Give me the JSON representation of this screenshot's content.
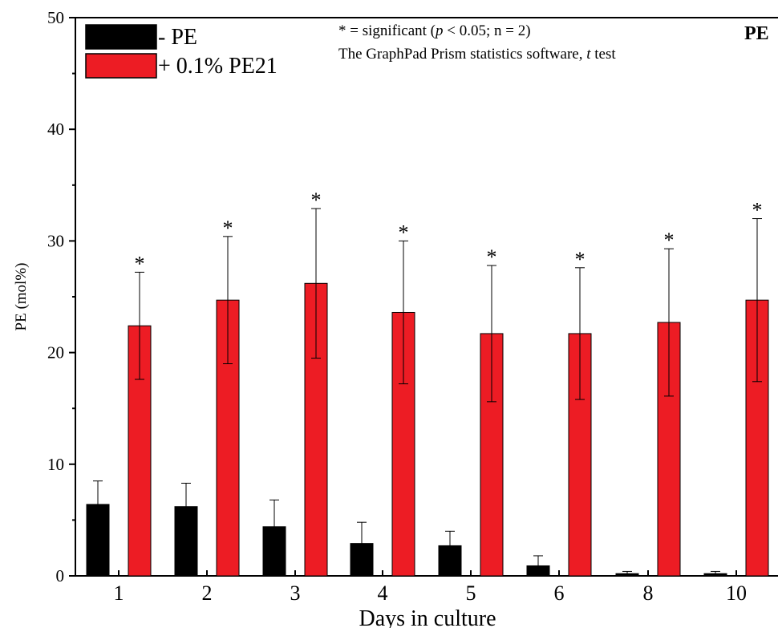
{
  "chart_data": {
    "type": "bar",
    "categories": [
      "1",
      "2",
      "3",
      "4",
      "5",
      "6",
      "8",
      "10"
    ],
    "series": [
      {
        "name": "- PE",
        "color": "#000000",
        "values": [
          6.4,
          6.2,
          4.4,
          2.9,
          2.7,
          0.9,
          0.2,
          0.2
        ],
        "errors": [
          2.1,
          2.1,
          2.4,
          1.9,
          1.3,
          0.9,
          0.2,
          0.2
        ]
      },
      {
        "name": "+ 0.1% PE21",
        "color": "#ed1c24",
        "values": [
          22.4,
          24.7,
          26.2,
          23.6,
          21.7,
          21.7,
          22.7,
          24.7
        ],
        "errors": [
          4.8,
          5.7,
          6.7,
          6.4,
          6.1,
          5.9,
          6.6,
          7.3
        ]
      }
    ],
    "significance_marker": "*",
    "title": "PE",
    "xlabel": "Days in culture",
    "ylabel": "PE (mol%)",
    "ylim": [
      0,
      50
    ],
    "yticks": [
      "0",
      "10",
      "20",
      "30",
      "40",
      "50"
    ],
    "annotation_line1_prefix": "* = significant (",
    "annotation_line1_p": "p",
    "annotation_line1_suffix": " < 0.05; n = 2)",
    "annotation_line2_prefix": "The GraphPad Prism statistics software, ",
    "annotation_line2_t": "t",
    "annotation_line2_suffix": " test",
    "grid": false,
    "legend_position": "top-left"
  }
}
